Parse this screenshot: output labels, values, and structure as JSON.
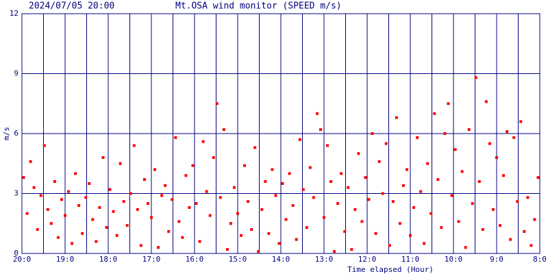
{
  "chart_data": {
    "type": "scatter",
    "title": "2024/07/05 20:00",
    "subtitle": "Mt.OSA wind monitor (SPEED m/s)",
    "y_label": "m/s",
    "x_label": "Time elapsed (Hour)",
    "color": "#ff0000",
    "grid_color": "#000080",
    "xlim": [
      0,
      12
    ],
    "xticks": [
      {
        "value": 0,
        "label": "20:0"
      },
      {
        "value": 1,
        "label": "19:0"
      },
      {
        "value": 2,
        "label": "18:0"
      },
      {
        "value": 3,
        "label": "17:0"
      },
      {
        "value": 4,
        "label": "16:0"
      },
      {
        "value": 5,
        "label": "15:0"
      },
      {
        "value": 6,
        "label": "14:0"
      },
      {
        "value": 7,
        "label": "13:0"
      },
      {
        "value": 8,
        "label": "12:0"
      },
      {
        "value": 9,
        "label": "11:0"
      },
      {
        "value": 10,
        "label": "10:0"
      },
      {
        "value": 11,
        "label": "9:0"
      },
      {
        "value": 12,
        "label": "8:0"
      }
    ],
    "xminor": [
      0.5,
      1.5,
      2.5,
      3.5,
      4.5,
      5.5,
      6.5,
      7.5,
      8.5,
      9.5,
      10.5,
      11.5
    ],
    "ylim": [
      0,
      12
    ],
    "yticks": [
      0,
      3,
      6,
      9,
      12
    ],
    "grid": true,
    "x": [
      0.04,
      0.12,
      0.2,
      0.28,
      0.36,
      0.44,
      0.52,
      0.6,
      0.68,
      0.76,
      0.84,
      0.92,
      1.0,
      1.08,
      1.16,
      1.24,
      1.32,
      1.4,
      1.48,
      1.56,
      1.64,
      1.72,
      1.8,
      1.88,
      1.96,
      2.04,
      2.12,
      2.2,
      2.28,
      2.36,
      2.44,
      2.52,
      2.6,
      2.68,
      2.76,
      2.84,
      2.92,
      3.0,
      3.08,
      3.16,
      3.24,
      3.32,
      3.4,
      3.48,
      3.56,
      3.64,
      3.72,
      3.8,
      3.88,
      3.96,
      4.04,
      4.12,
      4.2,
      4.28,
      4.36,
      4.44,
      4.52,
      4.6,
      4.68,
      4.76,
      4.84,
      4.92,
      5.0,
      5.08,
      5.16,
      5.24,
      5.32,
      5.4,
      5.48,
      5.56,
      5.64,
      5.72,
      5.8,
      5.88,
      5.96,
      6.04,
      6.12,
      6.2,
      6.28,
      6.36,
      6.44,
      6.52,
      6.6,
      6.68,
      6.76,
      6.84,
      6.92,
      7.0,
      7.08,
      7.16,
      7.24,
      7.32,
      7.4,
      7.48,
      7.56,
      7.64,
      7.72,
      7.8,
      7.88,
      7.96,
      8.04,
      8.12,
      8.2,
      8.28,
      8.36,
      8.44,
      8.52,
      8.6,
      8.68,
      8.76,
      8.84,
      8.92,
      9.0,
      9.08,
      9.16,
      9.24,
      9.32,
      9.4,
      9.48,
      9.56,
      9.64,
      9.72,
      9.8,
      9.88,
      9.96,
      10.04,
      10.12,
      10.2,
      10.28,
      10.36,
      10.44,
      10.52,
      10.6,
      10.68,
      10.76,
      10.84,
      10.92,
      11.0,
      11.08,
      11.16,
      11.24,
      11.32,
      11.4,
      11.48,
      11.56,
      11.64,
      11.72,
      11.8,
      11.88,
      11.96
    ],
    "values": [
      3.8,
      2.0,
      4.6,
      3.3,
      1.2,
      2.9,
      5.4,
      2.2,
      1.5,
      3.6,
      0.8,
      2.7,
      1.9,
      3.1,
      0.5,
      4.0,
      2.4,
      1.0,
      2.8,
      3.5,
      1.7,
      0.6,
      2.3,
      4.8,
      1.3,
      3.2,
      2.1,
      0.9,
      4.5,
      2.6,
      1.4,
      3.0,
      5.4,
      2.2,
      0.4,
      3.7,
      2.5,
      1.8,
      4.2,
      0.3,
      2.9,
      3.4,
      1.1,
      2.7,
      5.8,
      1.6,
      0.8,
      3.9,
      2.3,
      4.4,
      2.5,
      0.6,
      5.6,
      3.1,
      1.9,
      4.8,
      7.5,
      2.8,
      6.2,
      0.2,
      1.5,
      3.3,
      2.0,
      0.9,
      4.4,
      2.6,
      1.2,
      5.3,
      0.1,
      2.2,
      3.6,
      1.0,
      4.2,
      2.9,
      0.5,
      3.5,
      1.7,
      4.0,
      2.4,
      0.7,
      5.7,
      3.2,
      1.3,
      4.3,
      2.8,
      7.0,
      6.2,
      1.8,
      5.4,
      3.6,
      0.1,
      2.5,
      4.0,
      1.1,
      3.3,
      0.2,
      2.2,
      5.0,
      1.6,
      3.8,
      2.7,
      6.0,
      1.0,
      4.6,
      3.0,
      5.5,
      0.4,
      2.6,
      6.8,
      1.5,
      3.4,
      4.2,
      0.9,
      2.3,
      5.8,
      3.1,
      0.5,
      4.5,
      2.0,
      7.0,
      3.7,
      1.3,
      6.0,
      7.5,
      2.9,
      5.2,
      1.6,
      4.1,
      0.3,
      6.2,
      2.5,
      8.8,
      3.6,
      1.2,
      7.6,
      5.5,
      2.2,
      4.8,
      1.4,
      3.9,
      6.1,
      0.7,
      5.8,
      2.6,
      6.6,
      1.1,
      2.8,
      0.4,
      1.7,
      3.8
    ]
  }
}
